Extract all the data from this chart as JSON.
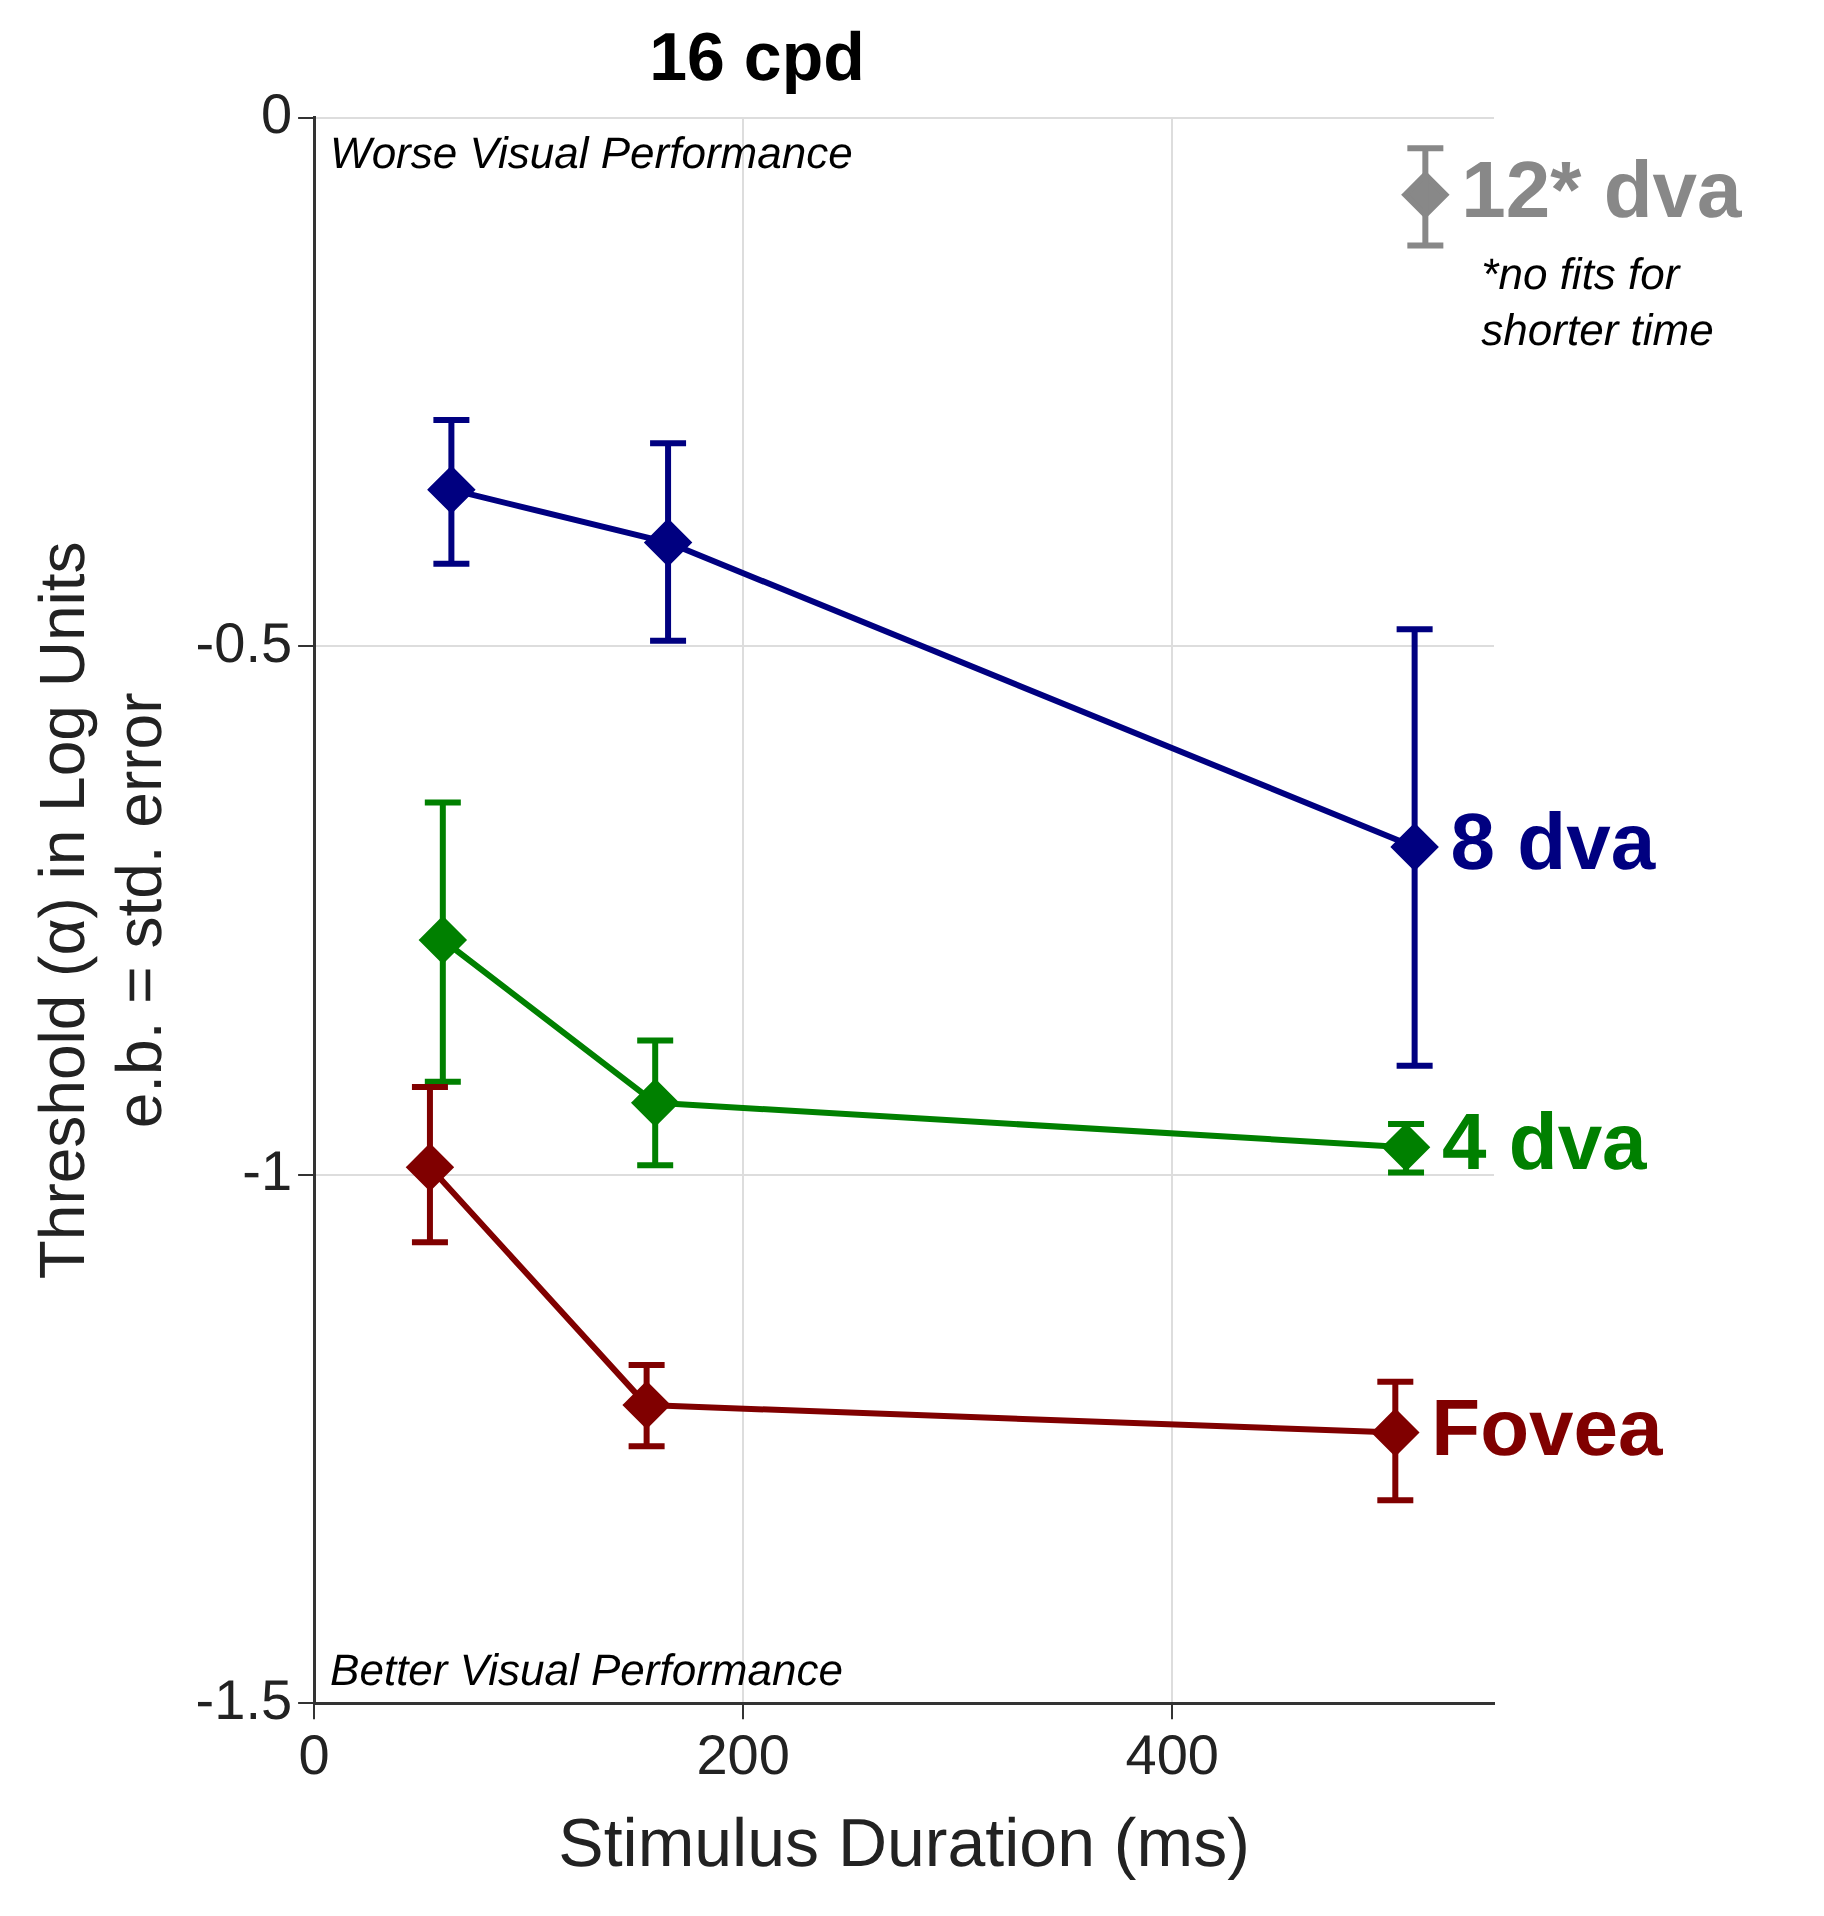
{
  "chart_data": {
    "type": "line",
    "title": "16 cpd",
    "xlabel": "Stimulus Duration (ms)",
    "ylabel": "Threshold (α) in Log Units\ne.b. = std. error",
    "xlim": [
      0,
      550
    ],
    "xticks": [
      0,
      200,
      400
    ],
    "ylim": [
      -1.5,
      0
    ],
    "yticks": [
      0,
      -0.5,
      -1,
      -1.5
    ],
    "grid": true,
    "legend": false,
    "marker": "diamond",
    "line_style": "solid",
    "series": [
      {
        "name": "8 dva",
        "color": "#000080",
        "x": [
          64,
          165,
          513
        ],
        "values": [
          -0.352,
          -0.402,
          -0.69
        ],
        "errors": [
          [
            -0.422,
            -0.286
          ],
          [
            -0.495,
            -0.308
          ],
          [
            -0.897,
            -0.484
          ]
        ]
      },
      {
        "name": "4 dva",
        "color": "#008000",
        "x": [
          60,
          159,
          509
        ],
        "values": [
          -0.778,
          -0.932,
          -0.974
        ],
        "errors": [
          [
            -0.912,
            -0.648
          ],
          [
            -0.991,
            -0.873
          ],
          [
            -0.998,
            -0.952
          ]
        ]
      },
      {
        "name": "Fovea",
        "color": "#800000",
        "x": [
          54,
          155,
          504
        ],
        "values": [
          -0.993,
          -1.218,
          -1.244
        ],
        "errors": [
          [
            -1.064,
            -0.917
          ],
          [
            -1.257,
            -1.18
          ],
          [
            -1.308,
            -1.196
          ]
        ]
      },
      {
        "name": "12* dva",
        "color": "#888888",
        "x": [
          518
        ],
        "values": [
          -0.073
        ],
        "errors": [
          [
            -0.121,
            -0.029
          ]
        ]
      }
    ],
    "annotations": [
      "Worse Visual Performance",
      "Better Visual Performance",
      "*no fits for shorter time"
    ]
  }
}
